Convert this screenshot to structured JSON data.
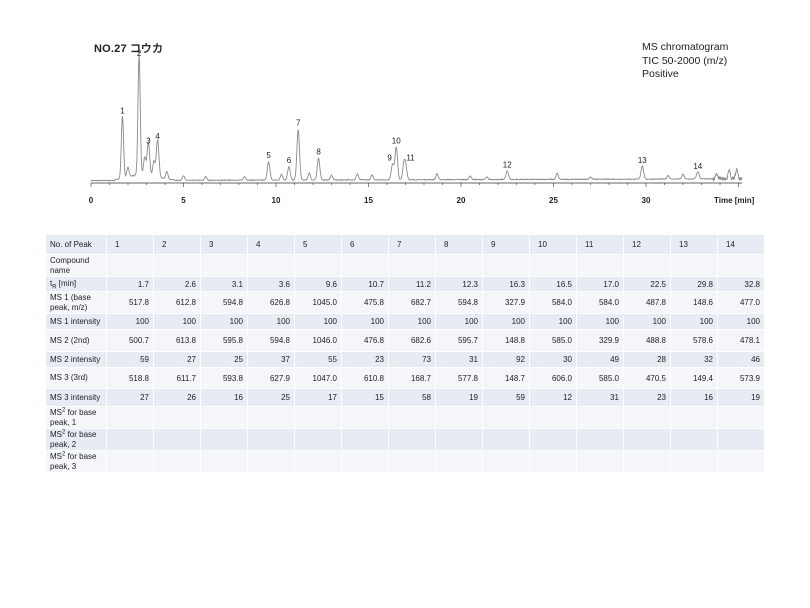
{
  "title": "NO.27 コウカ",
  "meta": [
    "MS chromatogram",
    "TIC 50-2000 (m/z)",
    "Positive"
  ],
  "chart_data": {
    "type": "line",
    "x_axis": {
      "label": "Time [min]",
      "ticks": [
        "0",
        "5",
        "10",
        "15",
        "20",
        "25",
        "30"
      ],
      "range": [
        0,
        35.2
      ]
    },
    "peaks": [
      {
        "label": "1",
        "time": 1.7,
        "height": 0.52
      },
      {
        "label": "2",
        "time": 2.6,
        "height": 1.0
      },
      {
        "label": "3",
        "time": 3.1,
        "height": 0.27
      },
      {
        "label": "4",
        "time": 3.6,
        "height": 0.31
      },
      {
        "label": "5",
        "time": 9.6,
        "height": 0.15
      },
      {
        "label": "6",
        "time": 10.7,
        "height": 0.11
      },
      {
        "label": "7",
        "time": 11.2,
        "height": 0.42
      },
      {
        "label": "8",
        "time": 12.3,
        "height": 0.18
      },
      {
        "label": "9",
        "time": 16.3,
        "height": 0.13
      },
      {
        "label": "10",
        "time": 16.5,
        "height": 0.27
      },
      {
        "label": "11",
        "time": 17.0,
        "height": 0.13
      },
      {
        "label": "12",
        "time": 22.5,
        "height": 0.07
      },
      {
        "label": "13",
        "time": 29.8,
        "height": 0.11
      },
      {
        "label": "14",
        "time": 32.8,
        "height": 0.06
      }
    ]
  },
  "table": {
    "header_label": "No. of Peak",
    "peak_numbers": [
      "1",
      "2",
      "3",
      "4",
      "5",
      "6",
      "7",
      "8",
      "9",
      "10",
      "11",
      "12",
      "13",
      "14"
    ],
    "rows": [
      {
        "label": "Compound name",
        "values": [
          "",
          "",
          "",
          "",
          "",
          "",
          "",
          "",
          "",
          "",
          "",
          "",
          "",
          ""
        ]
      },
      {
        "label_main": "t",
        "label_sub": "R",
        "label_tail": " [min]",
        "values": [
          "1.7",
          "2.6",
          "3.1",
          "3.6",
          "9.6",
          "10.7",
          "11.2",
          "12.3",
          "16.3",
          "16.5",
          "17.0",
          "22.5",
          "29.8",
          "32.8"
        ]
      },
      {
        "label": "MS 1 (base peak, m/z)",
        "values": [
          "517.8",
          "612.8",
          "594.8",
          "626.8",
          "1045.0",
          "475.8",
          "682.7",
          "594.8",
          "327.9",
          "584.0",
          "584.0",
          "487.8",
          "148.6",
          "477.0"
        ]
      },
      {
        "label": "MS 1 intensity",
        "values": [
          "100",
          "100",
          "100",
          "100",
          "100",
          "100",
          "100",
          "100",
          "100",
          "100",
          "100",
          "100",
          "100",
          "100"
        ]
      },
      {
        "label": "MS 2 (2nd)",
        "values": [
          "500.7",
          "613.8",
          "595.8",
          "594.8",
          "1046.0",
          "476.8",
          "682.6",
          "595.7",
          "148.8",
          "585.0",
          "329.9",
          "488.8",
          "578.6",
          "478.1"
        ]
      },
      {
        "label": "MS 2 intensity",
        "values": [
          "59",
          "27",
          "25",
          "37",
          "55",
          "23",
          "73",
          "31",
          "92",
          "30",
          "49",
          "28",
          "32",
          "46"
        ]
      },
      {
        "label": "MS 3 (3rd)",
        "values": [
          "518.8",
          "611.7",
          "593.8",
          "627.9",
          "1047.0",
          "610.8",
          "168.7",
          "577.8",
          "148.7",
          "606.0",
          "585.0",
          "470.5",
          "149.4",
          "573.9"
        ]
      },
      {
        "label": "MS 3 intensity",
        "values": [
          "27",
          "26",
          "16",
          "25",
          "17",
          "15",
          "58",
          "19",
          "59",
          "12",
          "31",
          "23",
          "16",
          "19"
        ]
      },
      {
        "label_main": "MS",
        "label_sup": "2",
        "label_tail": " for base peak, 1",
        "values": [
          "",
          "",
          "",
          "",
          "",
          "",
          "",
          "",
          "",
          "",
          "",
          "",
          "",
          ""
        ]
      },
      {
        "label_main": "MS",
        "label_sup": "2",
        "label_tail": " for base peak, 2",
        "values": [
          "",
          "",
          "",
          "",
          "",
          "",
          "",
          "",
          "",
          "",
          "",
          "",
          "",
          ""
        ]
      },
      {
        "label_main": "MS",
        "label_sup": "2",
        "label_tail": " for base peak, 3",
        "values": [
          "",
          "",
          "",
          "",
          "",
          "",
          "",
          "",
          "",
          "",
          "",
          "",
          "",
          ""
        ]
      }
    ]
  }
}
